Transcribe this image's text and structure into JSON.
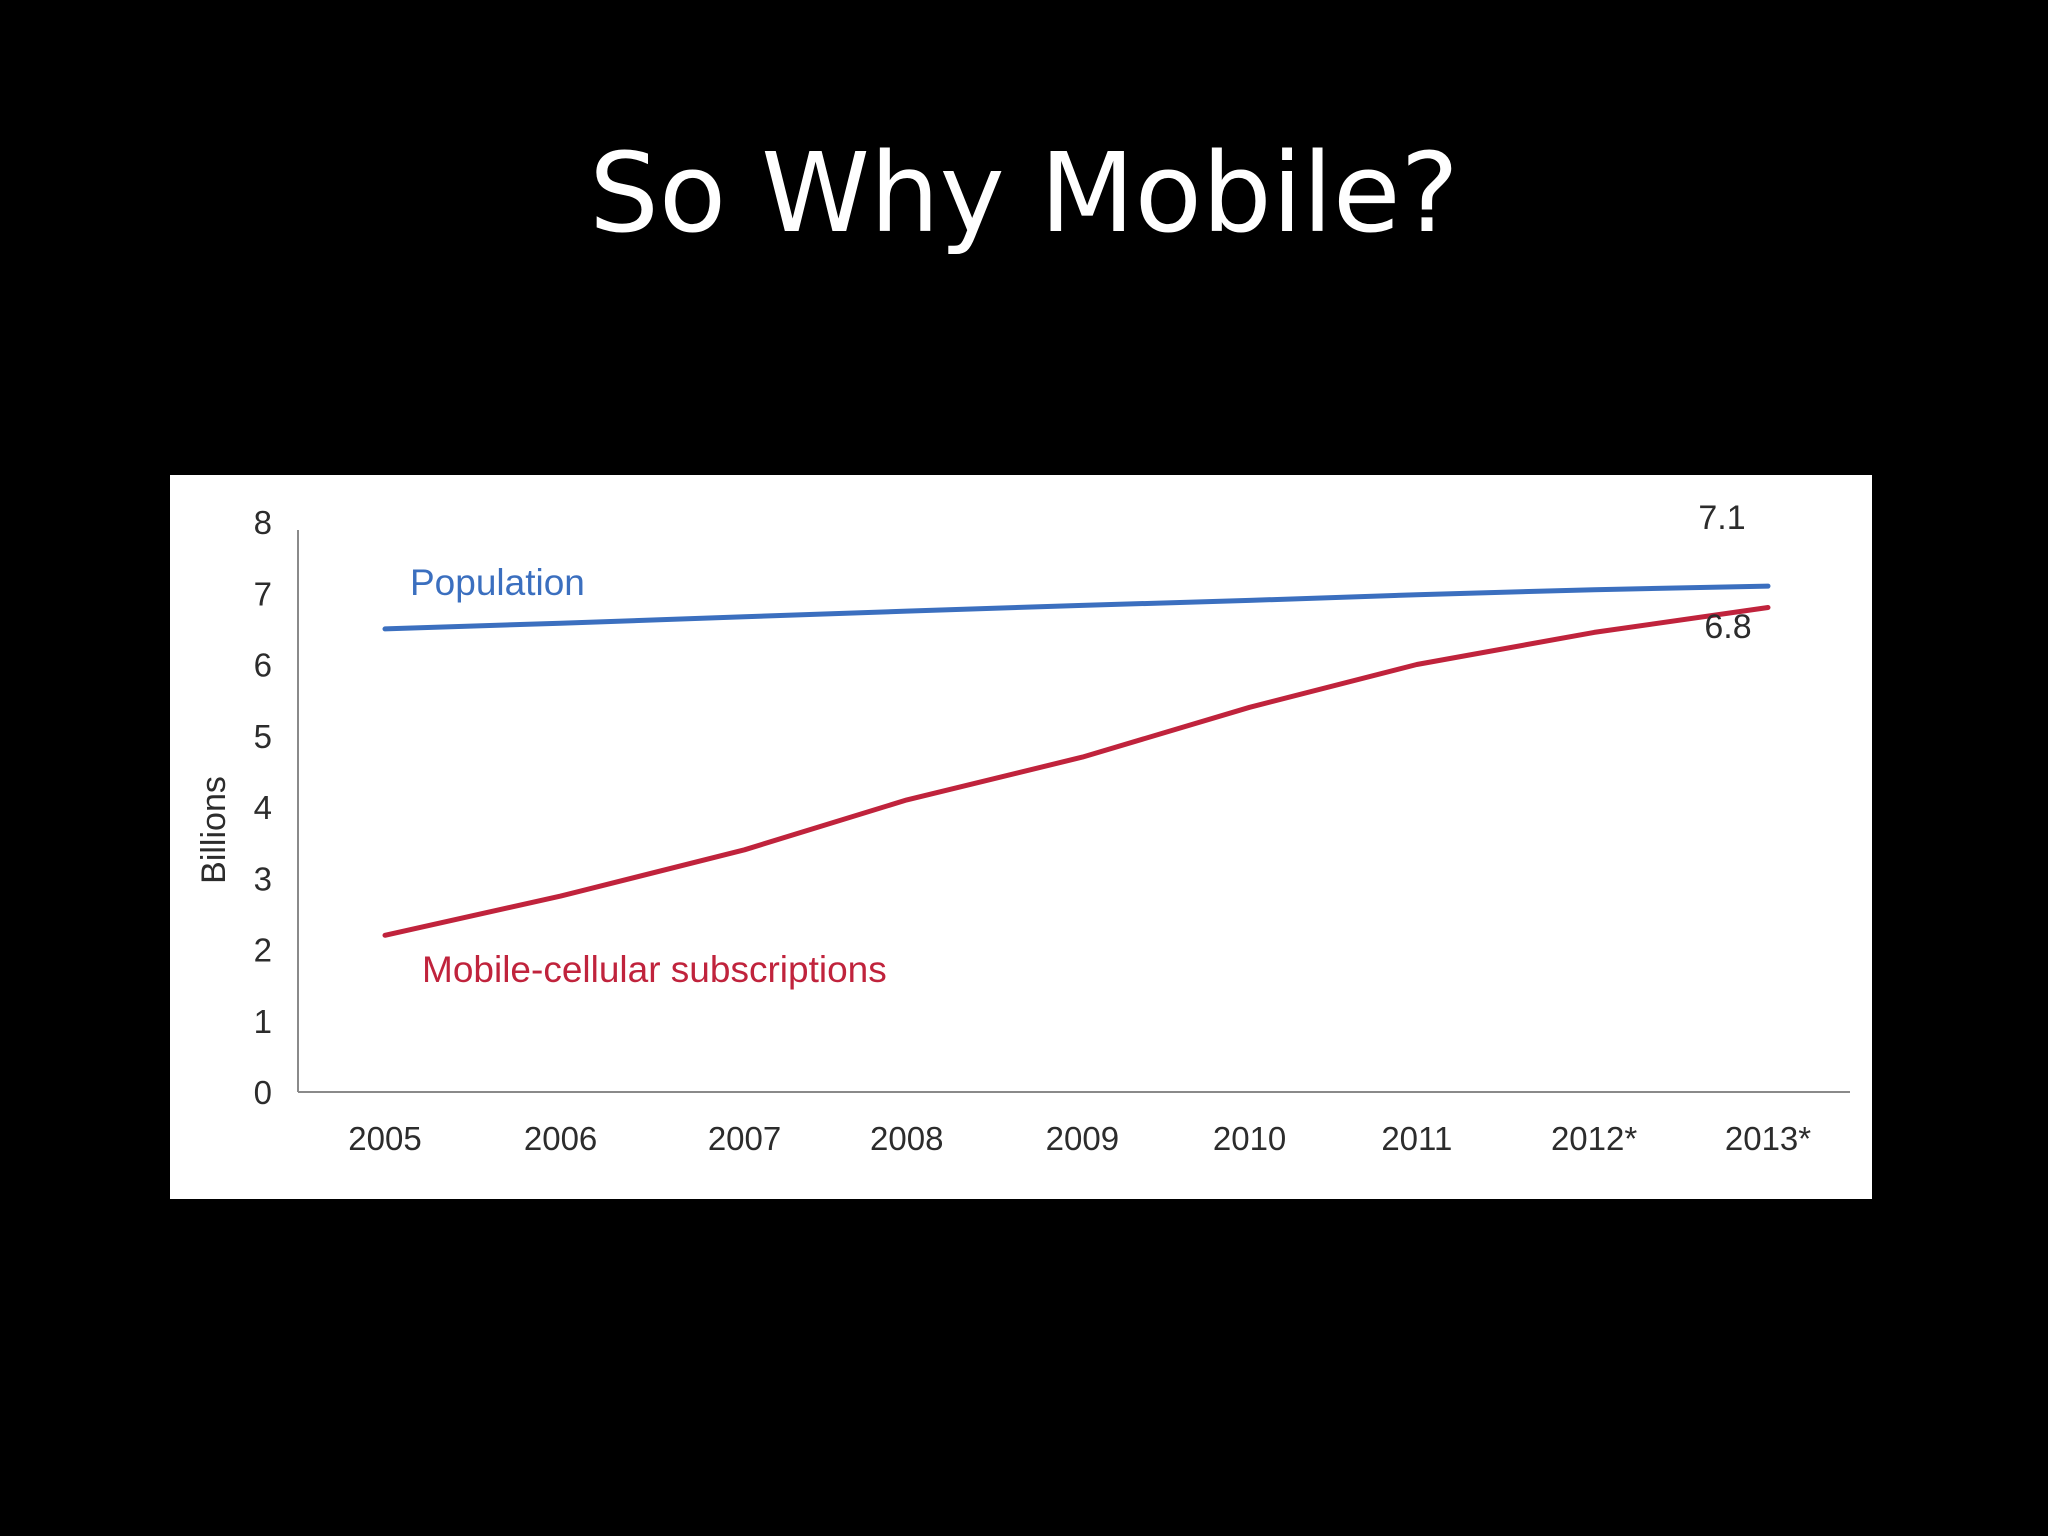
{
  "slide": {
    "title": "So Why Mobile?"
  },
  "chart_data": {
    "type": "line",
    "categories": [
      "2005",
      "2006",
      "2007",
      "2008",
      "2009",
      "2010",
      "2011",
      "2012*",
      "2013*"
    ],
    "x_positions": [
      2005,
      2006.05,
      2007.15,
      2008.12,
      2009.17,
      2010.17,
      2011.17,
      2012.23,
      2013.27
    ],
    "ylabel": "Billions",
    "ylim": [
      0,
      8
    ],
    "yticks": [
      0,
      1,
      2,
      3,
      4,
      5,
      6,
      7,
      8
    ],
    "grid": false,
    "series": [
      {
        "name": "Population",
        "color": "#3b6fbf",
        "values": [
          6.5,
          6.58,
          6.67,
          6.75,
          6.83,
          6.9,
          6.98,
          7.05,
          7.1
        ],
        "end_label": "7.1"
      },
      {
        "name": "Mobile-cellular subscriptions",
        "color": "#c0233c",
        "values": [
          2.2,
          2.75,
          3.4,
          4.1,
          4.7,
          5.4,
          6.0,
          6.45,
          6.8
        ],
        "end_label": "6.8"
      }
    ]
  }
}
